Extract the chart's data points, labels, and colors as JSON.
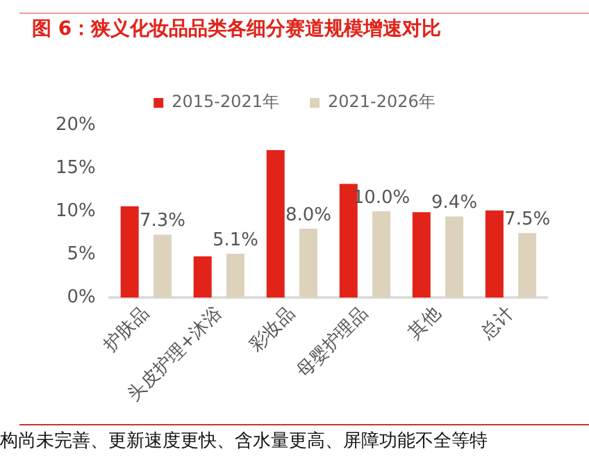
{
  "chart_data": {
    "type": "bar",
    "title": "图 6：狭义化妆品品类各细分赛道规模增速对比",
    "categories": [
      "护肤品",
      "头皮护理+沐浴",
      "彩妆品",
      "母婴护理品",
      "其他",
      "总计"
    ],
    "series": [
      {
        "name": "2015-2021年",
        "color": "#e2231a",
        "values": [
          10.6,
          4.8,
          17.1,
          13.2,
          9.9,
          10.1
        ]
      },
      {
        "name": "2021-2026年",
        "color": "#ddd3bc",
        "values": [
          7.3,
          5.1,
          8.0,
          10.0,
          9.4,
          7.5
        ],
        "value_labels": [
          "7.3%",
          "5.1%",
          "8.0%",
          "10.0%",
          "9.4%",
          "7.5%"
        ]
      }
    ],
    "ylim": [
      0,
      20
    ],
    "yticks": [
      {
        "value": 0,
        "label": "0%"
      },
      {
        "value": 5,
        "label": "5%"
      },
      {
        "value": 10,
        "label": "10%"
      },
      {
        "value": 15,
        "label": "15%"
      },
      {
        "value": 20,
        "label": "20%"
      }
    ],
    "grid": false,
    "legend": "top",
    "annotations": [
      "构尚未完善、更新速度更快、含水量更高、屏障功能不全等特"
    ]
  }
}
